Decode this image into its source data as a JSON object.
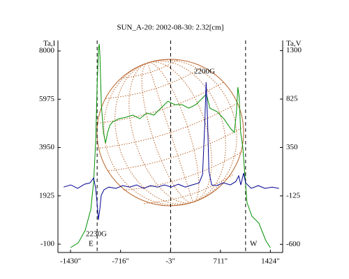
{
  "chart_data": {
    "type": "line",
    "title": "SUN_A-20: 2002-08-30: 2.32[cm]",
    "y_label": "Ta,I",
    "y2_label": "Ta,V",
    "xlim": [
      -1610,
      1600
    ],
    "ylim": [
      -450,
      8440
    ],
    "y2lim": [
      -680,
      1400
    ],
    "xticks": [
      {
        "value": -1430,
        "label": "-1430\""
      },
      {
        "value": -716,
        "label": "-716\""
      },
      {
        "value": -3,
        "label": "-3\""
      },
      {
        "value": 711,
        "label": "711\""
      },
      {
        "value": 1424,
        "label": "1424\""
      }
    ],
    "yticks": [
      -100,
      1925,
      3950,
      5975,
      8000
    ],
    "y2ticks": [
      -600,
      -125,
      350,
      825,
      1300
    ],
    "reference_lines_x": [
      -1050,
      0,
      1070
    ],
    "annotations": [
      "2200G",
      "2230G",
      "E",
      "W"
    ],
    "series": [
      {
        "name": "I",
        "color": "#009000",
        "axis": "y",
        "x": [
          -1430,
          -1320,
          -1220,
          -1140,
          -1100,
          -1070,
          -1050,
          -1030,
          -1020,
          -1010,
          -990,
          -960,
          -930,
          -900,
          -870,
          -830,
          -740,
          -640,
          -540,
          -440,
          -340,
          -240,
          -140,
          -40,
          60,
          160,
          260,
          360,
          460,
          510,
          560,
          660,
          760,
          860,
          910,
          940,
          960,
          980,
          1000,
          1030,
          1060,
          1090,
          1160,
          1260,
          1360,
          1424
        ],
        "values": [
          -245,
          -45,
          485,
          1360,
          2530,
          4290,
          6630,
          8090,
          8290,
          7800,
          5750,
          4580,
          4140,
          4580,
          4870,
          5020,
          5160,
          5220,
          5310,
          5160,
          5400,
          5310,
          5600,
          5890,
          5750,
          5750,
          5600,
          5750,
          6040,
          6190,
          5600,
          5460,
          5160,
          4730,
          4580,
          5460,
          6480,
          6040,
          4580,
          3990,
          2820,
          1650,
          1070,
          780,
          45,
          -245
        ]
      },
      {
        "name": "V",
        "color": "#000090",
        "axis": "y2",
        "x": [
          -1528,
          -1428,
          -1329,
          -1230,
          -1151,
          -1101,
          -1071,
          -1052,
          -1032,
          -1012,
          -992,
          -952,
          -883,
          -784,
          -684,
          -585,
          -486,
          -387,
          -288,
          -188,
          -89,
          10,
          109,
          208,
          308,
          407,
          456,
          486,
          506,
          526,
          546,
          585,
          655,
          754,
          853,
          932,
          972,
          1002,
          1042,
          1071,
          1151,
          1250,
          1349,
          1448,
          1547
        ],
        "values": [
          -38,
          -17,
          -51,
          -10,
          3,
          51,
          -51,
          -189,
          -360,
          -257,
          -120,
          -65,
          -38,
          -51,
          -24,
          -38,
          -17,
          -51,
          -24,
          -38,
          -17,
          -38,
          -10,
          -38,
          -17,
          3,
          85,
          566,
          991,
          635,
          120,
          -17,
          -24,
          3,
          -17,
          17,
          72,
          -17,
          99,
          3,
          -51,
          -24,
          -51,
          -38,
          -51
        ]
      }
    ]
  }
}
